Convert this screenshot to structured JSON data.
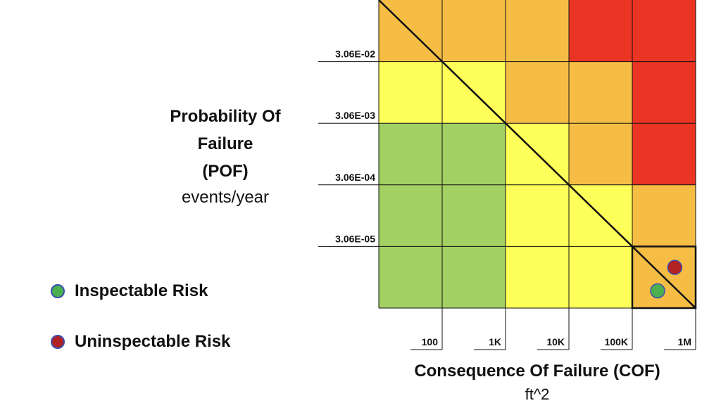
{
  "chart_data": {
    "type": "heatmap",
    "ylabel_lines": [
      "Probability Of",
      "Failure",
      "(POF)"
    ],
    "yunit": "events/year",
    "xlabel": "Consequence Of Failure (COF)",
    "xunit": "ft^2",
    "y_ticks": [
      "3.06E-02",
      "3.06E-03",
      "3.06E-04",
      "3.06E-05"
    ],
    "x_ticks": [
      "100",
      "1K",
      "10K",
      "100K",
      "1M"
    ],
    "grid": {
      "rows": 5,
      "cols": 5,
      "cells": [
        [
          "medium-high",
          "medium-high",
          "medium-high",
          "high",
          "high"
        ],
        [
          "medium",
          "medium",
          "medium-high",
          "medium-high",
          "high"
        ],
        [
          "low",
          "low",
          "medium",
          "medium-high",
          "high"
        ],
        [
          "low",
          "low",
          "medium",
          "medium",
          "medium-high"
        ],
        [
          "low",
          "low",
          "medium",
          "medium",
          "medium-high"
        ]
      ]
    },
    "risk_colors": {
      "low": "#a3d063",
      "medium": "#ffff5a",
      "medium-high": "#f6bd45",
      "high": "#ea3524"
    },
    "highlighted_cell": {
      "row": 4,
      "col": 4
    },
    "points": [
      {
        "series": "Inspectable Risk",
        "row": 4,
        "col": 4,
        "fx": 0.4,
        "fy": 0.72,
        "color": "#4caf50"
      },
      {
        "series": "Uninspectable Risk",
        "row": 4,
        "col": 4,
        "fx": 0.67,
        "fy": 0.34,
        "color": "#b22222"
      }
    ],
    "legend": [
      {
        "label": "Inspectable Risk",
        "color": "#4caf50"
      },
      {
        "label": "Uninspectable Risk",
        "color": "#b22222"
      }
    ],
    "legend_position": "left"
  }
}
